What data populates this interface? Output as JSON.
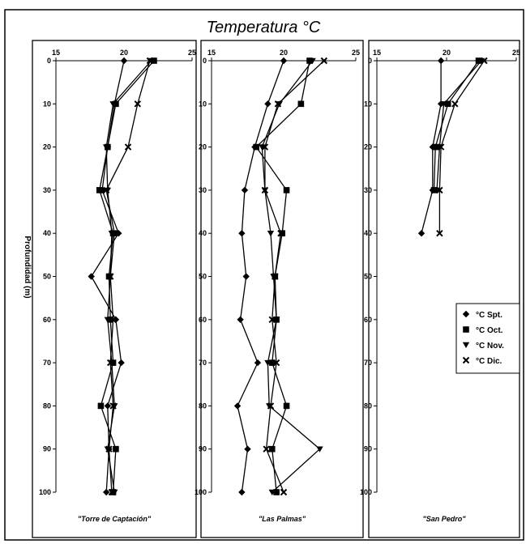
{
  "chart_data": {
    "type": "line",
    "title": "Temperatura °C",
    "ylabel": "Profundidad (m)",
    "legend_position": "right",
    "series_names": [
      "°C Spt.",
      "°C Oct.",
      "°C Nov.",
      "°C Dic."
    ],
    "series_markers": [
      "diamond",
      "square",
      "triangle-down",
      "x"
    ],
    "xlim": [
      15,
      25
    ],
    "x_ticks": [
      15,
      20,
      25
    ],
    "y_reversed": true,
    "panels": [
      {
        "title": "\"Torre de Captación\"",
        "ylim": [
          0,
          100
        ],
        "y_ticks": [
          0,
          10,
          20,
          30,
          40,
          50,
          60,
          70,
          80,
          90,
          100
        ],
        "depths": [
          0,
          10,
          20,
          30,
          40,
          50,
          60,
          70,
          80,
          90,
          100
        ],
        "series": [
          {
            "name": "°C Spt.",
            "values": [
              20.0,
              19.3,
              18.8,
              18.4,
              19.6,
              17.6,
              19.4,
              19.8,
              18.8,
              18.9,
              18.7
            ]
          },
          {
            "name": "°C Oct.",
            "values": [
              22.2,
              19.4,
              18.8,
              18.2,
              19.2,
              18.9,
              19.0,
              19.2,
              18.3,
              19.4,
              19.2
            ]
          },
          {
            "name": "°C Nov.",
            "values": [
              22.0,
              19.2,
              18.7,
              18.8,
              19.1,
              19.0,
              18.8,
              19.1,
              19.3,
              18.8,
              19.3
            ]
          },
          {
            "name": "°C Dic.",
            "values": [
              21.9,
              21.0,
              20.3,
              18.7,
              19.3,
              19.0,
              19.2,
              19.0,
              19.2,
              18.9,
              19.1
            ]
          }
        ]
      },
      {
        "title": "\"Las Palmas\"",
        "ylim": [
          0,
          100
        ],
        "y_ticks": [
          0,
          10,
          20,
          30,
          40,
          50,
          60,
          70,
          80,
          90,
          100
        ],
        "depths": [
          0,
          10,
          20,
          30,
          40,
          50,
          60,
          70,
          80,
          90,
          100
        ],
        "series": [
          {
            "name": "°C Spt.",
            "values": [
              20.0,
              18.9,
              18.0,
              17.3,
              17.1,
              17.4,
              17.0,
              18.2,
              16.8,
              17.5,
              17.1
            ]
          },
          {
            "name": "°C Oct.",
            "values": [
              21.8,
              21.2,
              18.1,
              20.2,
              19.9,
              19.4,
              19.5,
              19.2,
              20.2,
              19.2,
              19.5
            ]
          },
          {
            "name": "°C Nov.",
            "values": [
              22.0,
              19.7,
              18.5,
              18.7,
              19.1,
              19.3,
              19.5,
              18.9,
              19.0,
              22.5,
              19.2
            ]
          },
          {
            "name": "°C Dic.",
            "values": [
              22.8,
              19.6,
              18.7,
              18.7,
              19.8,
              19.4,
              19.2,
              19.5,
              19.1,
              18.8,
              20.0
            ]
          }
        ]
      },
      {
        "title": "\"San Pedro\"",
        "ylim": [
          0,
          100
        ],
        "y_ticks": [
          0,
          10,
          20,
          30,
          40,
          50,
          60,
          70,
          80,
          90,
          100
        ],
        "depths": [
          0,
          10,
          20,
          30,
          40
        ],
        "series": [
          {
            "name": "°C Spt.",
            "values": [
              19.6,
              19.6,
              19.0,
              19.0,
              18.2
            ]
          },
          {
            "name": "°C Oct.",
            "values": [
              22.3,
              20.1,
              19.2,
              19.1
            ]
          },
          {
            "name": "°C Nov.",
            "values": [
              22.5,
              19.8,
              19.5,
              19.3
            ]
          },
          {
            "name": "°C Dic.",
            "values": [
              22.7,
              20.6,
              19.6,
              19.5,
              19.5
            ]
          }
        ]
      }
    ]
  }
}
